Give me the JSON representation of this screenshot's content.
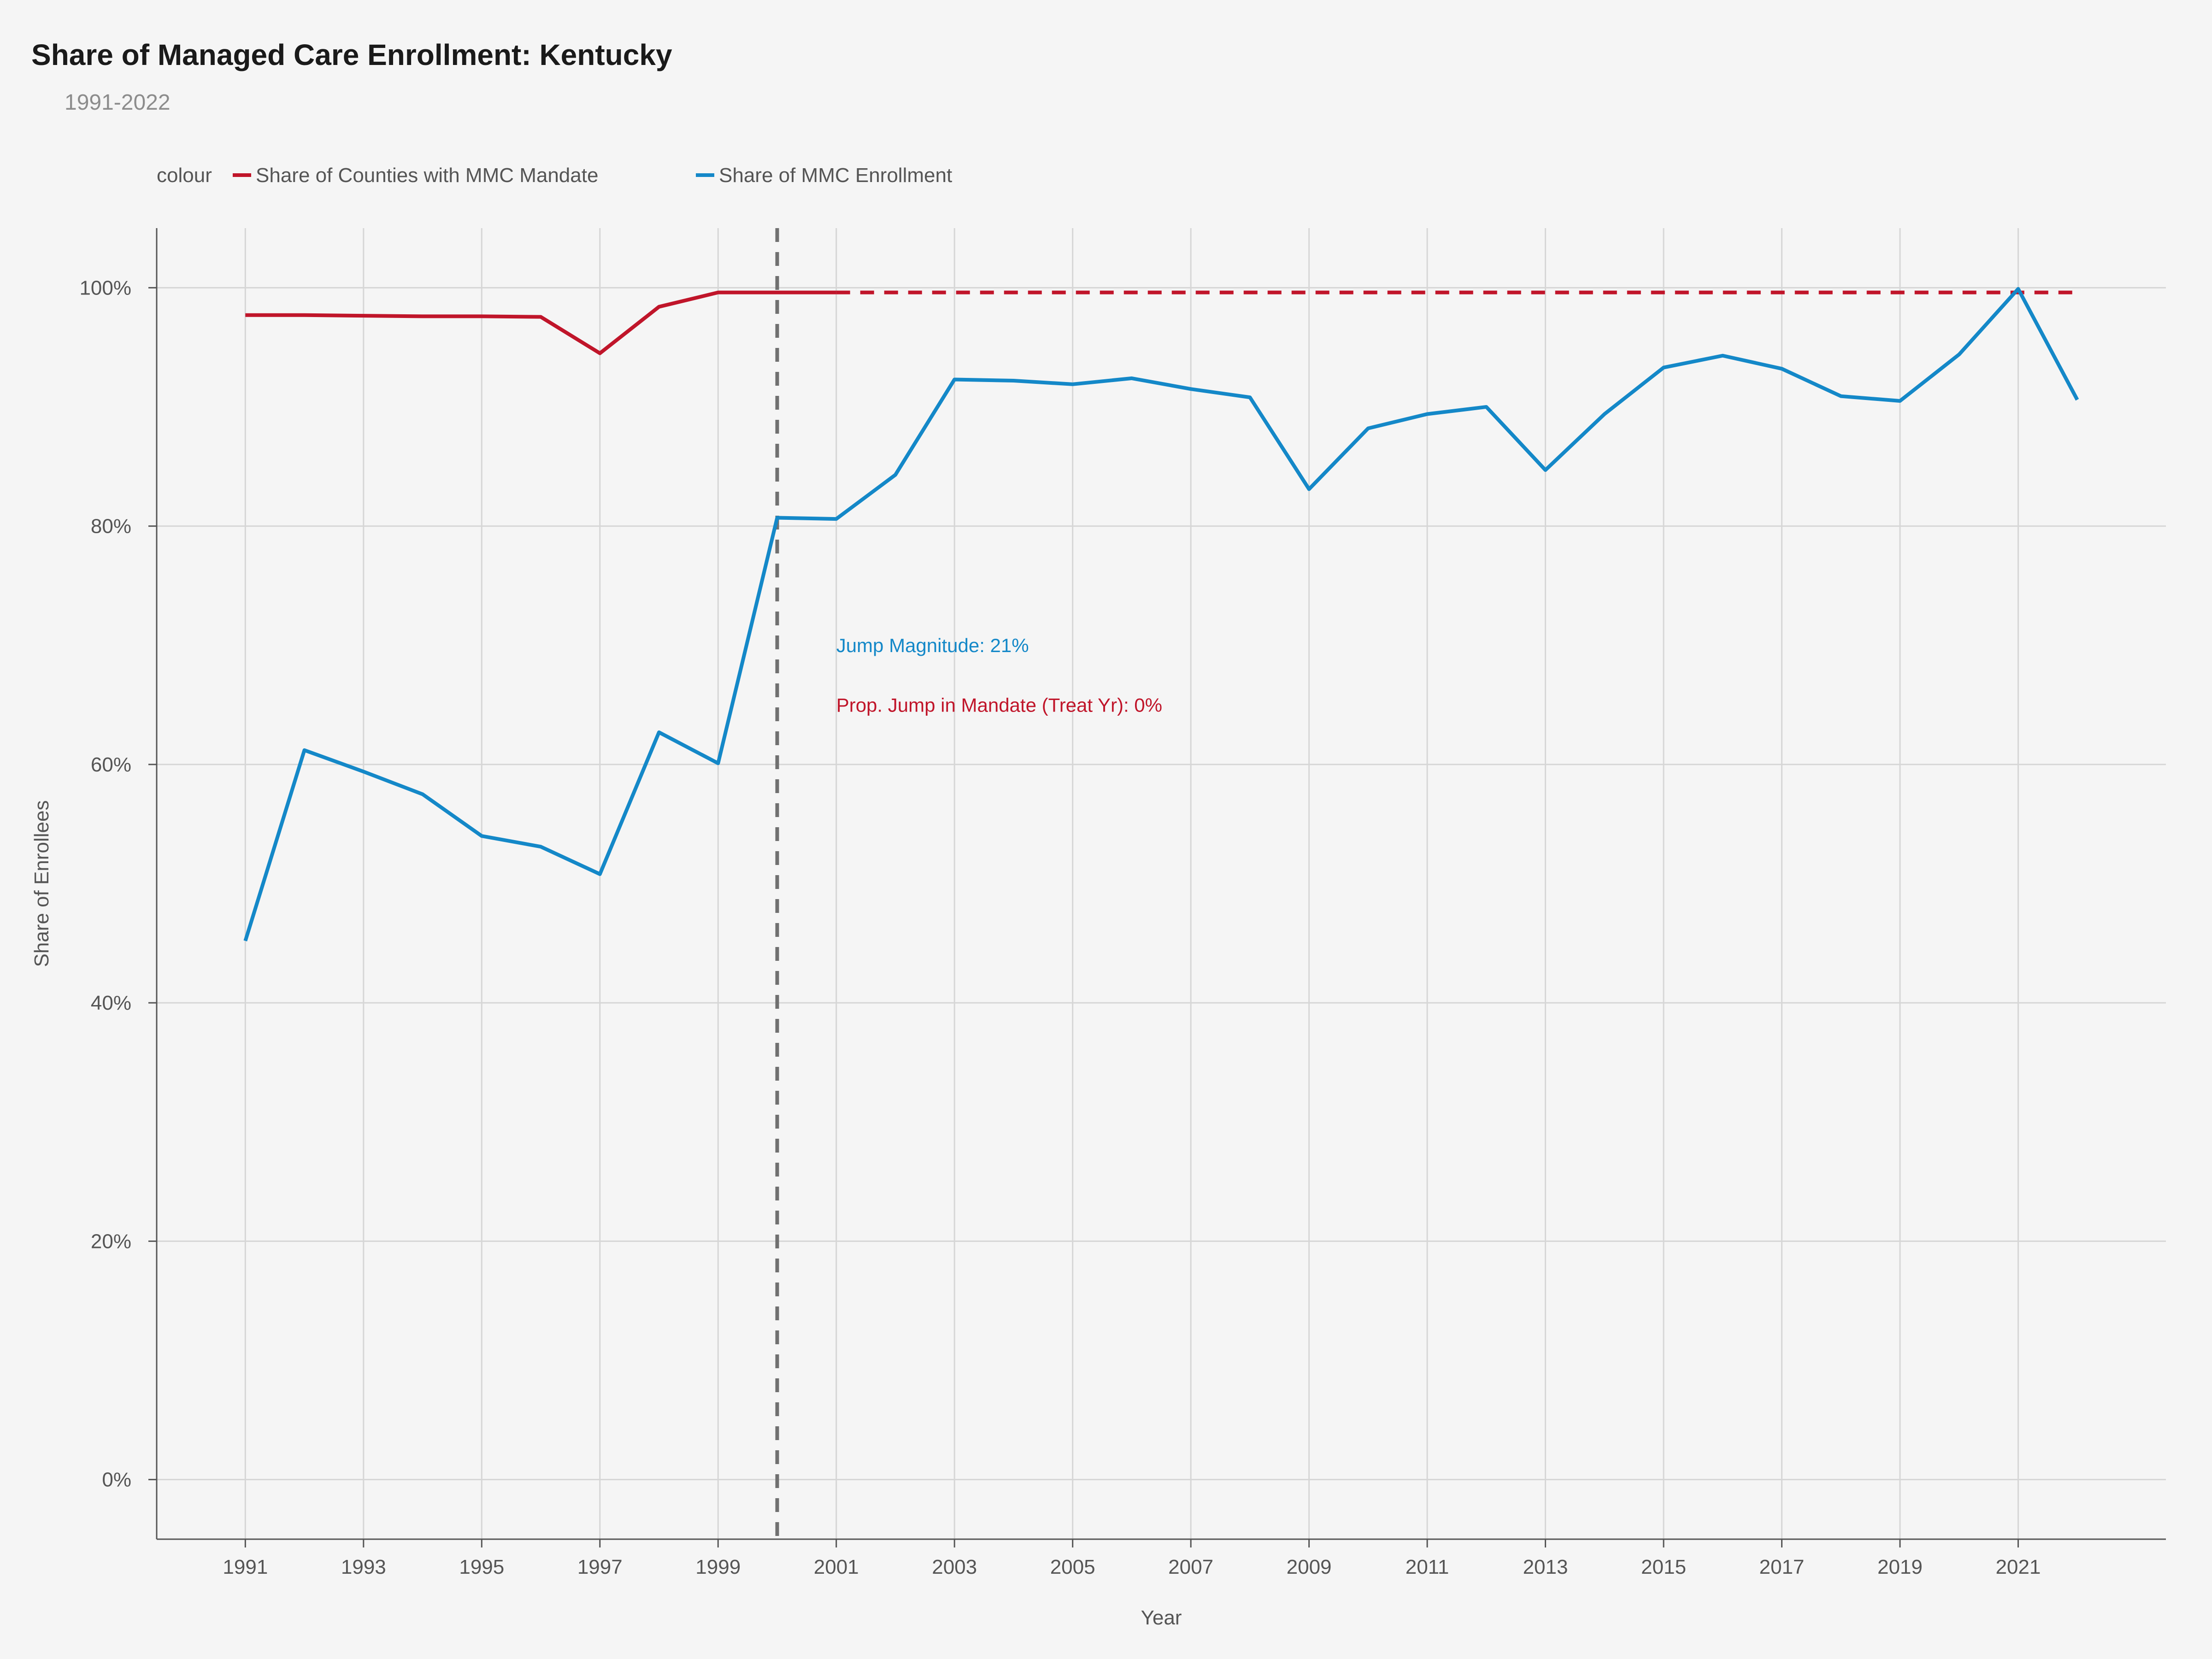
{
  "chart_data": {
    "type": "line",
    "title": "Share of Managed Care Enrollment: Kentucky",
    "subtitle": "1991-2022",
    "xlabel": "Year",
    "ylabel": "Share of Enrollees",
    "xlim": [
      1989.5,
      2023.5
    ],
    "ylim": [
      -5,
      105
    ],
    "x_ticks": [
      1991,
      1993,
      1995,
      1997,
      1999,
      2001,
      2003,
      2005,
      2007,
      2009,
      2011,
      2013,
      2015,
      2017,
      2019,
      2021
    ],
    "x_tick_labels": [
      "1991",
      "1993",
      "1995",
      "1997",
      "1999",
      "2001",
      "2003",
      "2005",
      "2007",
      "2009",
      "2011",
      "2013",
      "2015",
      "2017",
      "2019",
      "2021"
    ],
    "y_ticks": [
      0,
      20,
      40,
      60,
      80,
      100
    ],
    "y_tick_labels": [
      "0%",
      "20%",
      "40%",
      "60%",
      "80%",
      "100%"
    ],
    "grid": true,
    "legend": {
      "title": "colour",
      "position": "top-left",
      "entries": [
        "Share of Counties with MMC Mandate",
        "Share of MMC Enrollment"
      ]
    },
    "treatment_year": 2000,
    "series": [
      {
        "name": "Share of Counties with MMC Mandate",
        "color": "#c0152a",
        "solid": {
          "x": [
            1991,
            1992,
            1993,
            1994,
            1995,
            1996,
            1997,
            1998,
            1999,
            2000,
            2001
          ],
          "y": [
            97.7,
            97.7,
            97.65,
            97.6,
            97.6,
            97.55,
            94.5,
            98.4,
            99.6,
            99.6,
            99.6
          ]
        },
        "dashed": {
          "x": [
            2001,
            2022
          ],
          "y": [
            99.6,
            99.6
          ]
        }
      },
      {
        "name": "Share of MMC Enrollment",
        "color": "#1488c8",
        "x": [
          1991,
          1992,
          1993,
          1994,
          1995,
          1996,
          1997,
          1998,
          1999,
          2000,
          2001,
          2002,
          2003,
          2004,
          2005,
          2006,
          2007,
          2008,
          2009,
          2010,
          2011,
          2012,
          2013,
          2014,
          2015,
          2016,
          2017,
          2018,
          2019,
          2020,
          2021,
          2022
        ],
        "y": [
          45.2,
          61.2,
          59.4,
          57.5,
          54.0,
          53.1,
          50.8,
          62.7,
          60.1,
          80.7,
          80.6,
          84.3,
          92.3,
          92.2,
          91.9,
          92.4,
          91.5,
          90.8,
          83.1,
          88.2,
          89.4,
          90.0,
          84.7,
          89.4,
          93.3,
          94.3,
          93.2,
          90.9,
          90.5,
          94.4,
          99.9,
          90.6
        ]
      }
    ],
    "annotations": [
      {
        "text": "Jump Magnitude: 21%",
        "x": 2001,
        "y": 70,
        "color": "#1488c8"
      },
      {
        "text": "Prop. Jump in Mandate (Treat Yr): 0%",
        "x": 2001,
        "y": 65,
        "color": "#c0152a"
      }
    ]
  }
}
